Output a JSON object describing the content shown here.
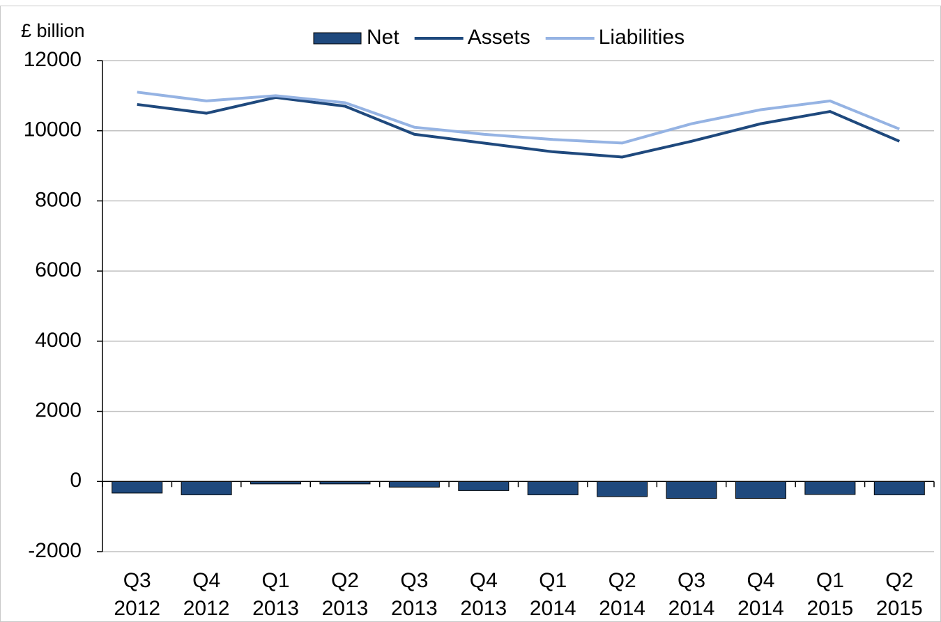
{
  "chart_data": {
    "type": "combo",
    "ylabel": "£ billion",
    "categories": [
      [
        "Q3",
        "2012"
      ],
      [
        "Q4",
        "2012"
      ],
      [
        "Q1",
        "2013"
      ],
      [
        "Q2",
        "2013"
      ],
      [
        "Q3",
        "2013"
      ],
      [
        "Q4",
        "2013"
      ],
      [
        "Q1",
        "2014"
      ],
      [
        "Q2",
        "2014"
      ],
      [
        "Q3",
        "2014"
      ],
      [
        "Q4",
        "2014"
      ],
      [
        "Q1",
        "2015"
      ],
      [
        "Q2",
        "2015"
      ]
    ],
    "series": [
      {
        "name": "Net",
        "type": "bar",
        "color": "#1f497d",
        "values": [
          -330,
          -380,
          -70,
          -70,
          -160,
          -260,
          -380,
          -430,
          -480,
          -480,
          -370,
          -380
        ]
      },
      {
        "name": "Assets",
        "type": "line",
        "color": "#1f497d",
        "values": [
          10750,
          10500,
          10950,
          10700,
          9900,
          9650,
          9400,
          9250,
          9700,
          10200,
          10550,
          9700
        ]
      },
      {
        "name": "Liabilities",
        "type": "line",
        "color": "#95b3e3",
        "values": [
          11100,
          10850,
          11000,
          10800,
          10100,
          9900,
          9750,
          9650,
          10200,
          10600,
          10850,
          10050
        ]
      }
    ],
    "ylim": [
      -2000,
      12000
    ],
    "yticks": [
      -2000,
      0,
      2000,
      4000,
      6000,
      8000,
      10000,
      12000
    ],
    "grid": true,
    "legend": "top"
  }
}
